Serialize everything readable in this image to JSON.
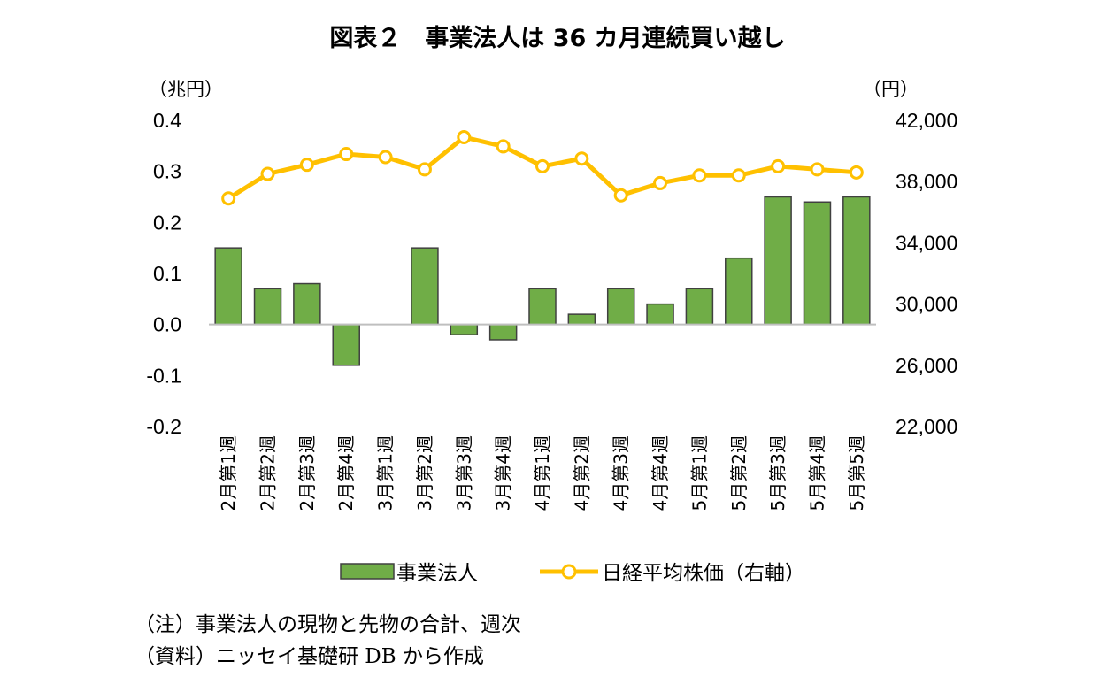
{
  "chart_data": {
    "type": "bar",
    "title": "図表２　事業法人は 36 カ月連続買い越し",
    "left_unit": "（兆円）",
    "right_unit": "（円）",
    "categories": [
      "2月第1週",
      "2月第2週",
      "2月第3週",
      "2月第4週",
      "3月第1週",
      "3月第2週",
      "3月第3週",
      "3月第4週",
      "4月第1週",
      "4月第2週",
      "4月第3週",
      "4月第4週",
      "5月第1週",
      "5月第2週",
      "5月第3週",
      "5月第4週",
      "5月第5週"
    ],
    "series": [
      {
        "name": "事業法人",
        "type": "bar",
        "axis": "left",
        "color": "#70AD47",
        "values": [
          0.15,
          0.07,
          0.08,
          -0.08,
          0.0,
          0.15,
          -0.02,
          -0.03,
          0.07,
          0.02,
          0.07,
          0.04,
          0.07,
          0.13,
          0.25,
          0.24,
          0.25
        ]
      },
      {
        "name": "日経平均株価（右軸）",
        "type": "line",
        "axis": "right",
        "color": "#FFC000",
        "values": [
          36900,
          38500,
          39100,
          39800,
          39600,
          38800,
          40900,
          40300,
          39000,
          39500,
          37100,
          37900,
          38400,
          38400,
          39000,
          38800,
          38600
        ]
      }
    ],
    "left_axis": {
      "ylim": [
        -0.2,
        0.4
      ],
      "ticks": [
        "0.4",
        "0.3",
        "0.2",
        "0.1",
        "0.0",
        "-0.1",
        "-0.2"
      ]
    },
    "right_axis": {
      "ylim": [
        22000,
        42000
      ],
      "ticks": [
        "42,000",
        "38,000",
        "34,000",
        "30,000",
        "26,000",
        "22,000"
      ]
    },
    "legend_position": "bottom",
    "grid": false
  },
  "notes": [
    "（注）事業法人の現物と先物の合計、週次",
    "（資料）ニッセイ基礎研 DB から作成"
  ]
}
